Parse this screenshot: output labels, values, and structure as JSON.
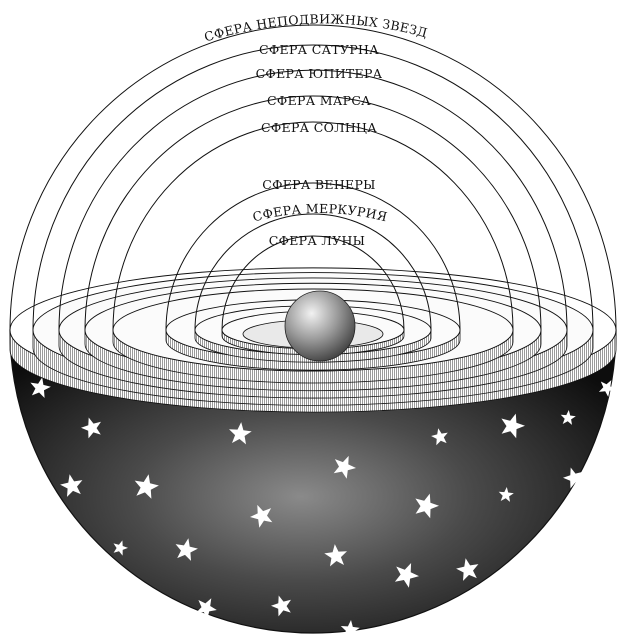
{
  "spheres": [
    {
      "key": "stars",
      "label": "СФЕРА НЕПОДВИЖНЫХ ЗВЕЗД"
    },
    {
      "key": "saturn",
      "label": "СФЕРА САТУРНА"
    },
    {
      "key": "jupiter",
      "label": "СФЕРА ЮПИТЕРА"
    },
    {
      "key": "mars",
      "label": "СФЕРА МАРСА"
    },
    {
      "key": "sun",
      "label": "СФЕРА СОЛНЦА"
    },
    {
      "key": "venus",
      "label": "СФЕРА ВЕНЕРЫ"
    },
    {
      "key": "mercury",
      "label": "СФЕРА МЕРКУРИЯ"
    },
    {
      "key": "moon",
      "label": "СФЕРА ЛУНЫ"
    }
  ],
  "center_body": "earth",
  "outer_hemisphere": "starry-sky",
  "colors": {
    "line": "#111111",
    "background": "#ffffff",
    "hemisphere_dark": "#0d0d0d",
    "hemisphere_light": "#8a8a8a",
    "star": "#ffffff"
  }
}
